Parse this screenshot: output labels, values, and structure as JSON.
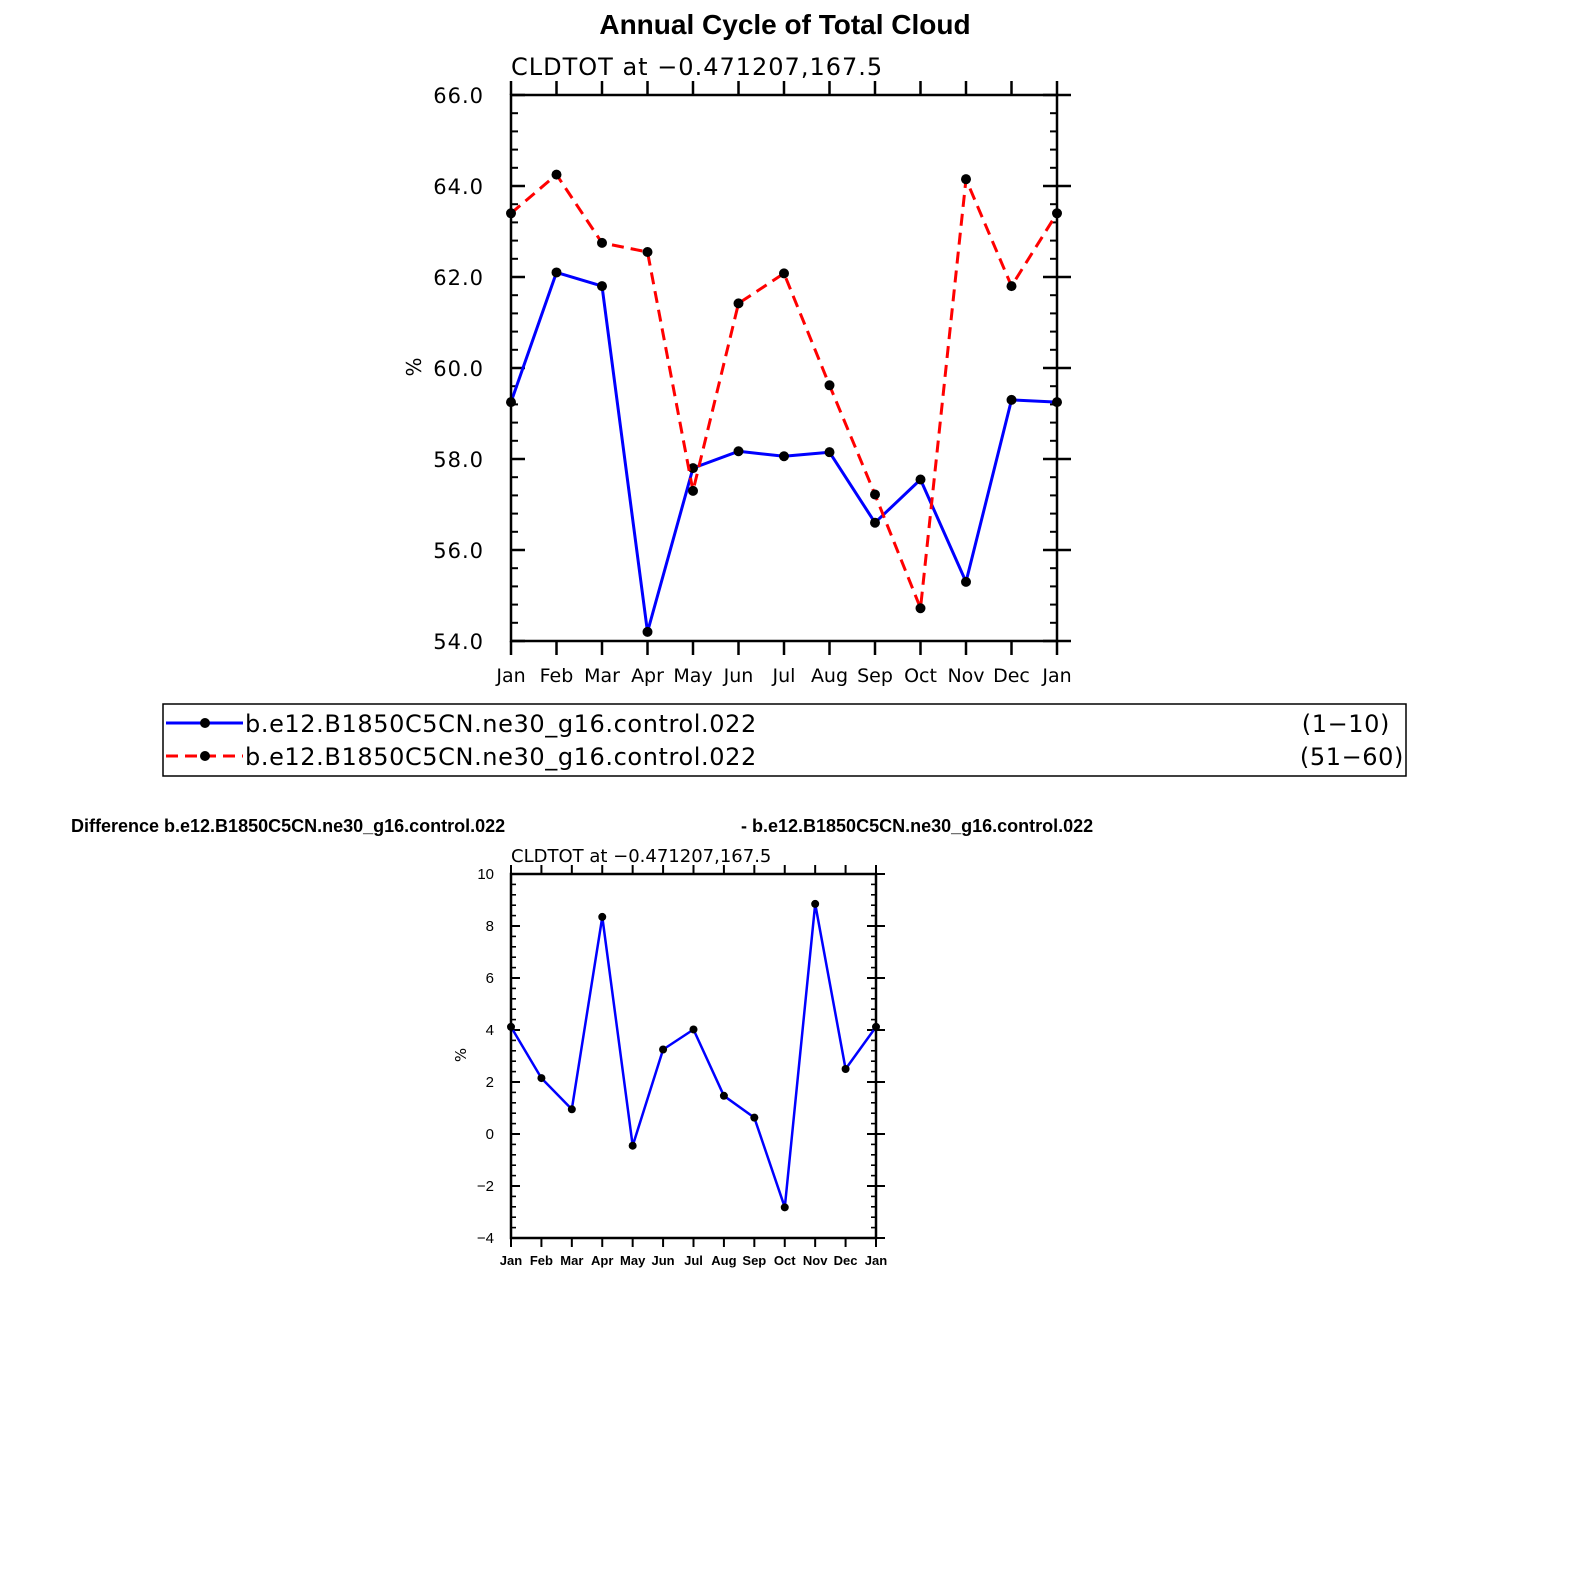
{
  "page_title": "Annual Cycle of Total Cloud",
  "chart_data": [
    {
      "type": "line",
      "subtitle": "CLDTOT at −0.471207,167.5",
      "ylabel": "%",
      "ylim": [
        54,
        66
      ],
      "yticks": [
        "54.0",
        "56.0",
        "58.0",
        "60.0",
        "62.0",
        "64.0",
        "66.0"
      ],
      "categories": [
        "Jan",
        "Feb",
        "Mar",
        "Apr",
        "May",
        "Jun",
        "Jul",
        "Aug",
        "Sep",
        "Oct",
        "Nov",
        "Dec",
        "Jan"
      ],
      "series": [
        {
          "name": "b.e12.B1850C5CN.ne30_g16.control.022",
          "years": "(1−10)",
          "color": "#0000ff",
          "dash": "solid",
          "values": [
            59.25,
            62.1,
            61.8,
            54.2,
            57.8,
            58.17,
            58.06,
            58.15,
            56.6,
            57.55,
            55.3,
            59.3,
            59.25
          ]
        },
        {
          "name": "b.e12.B1850C5CN.ne30_g16.control.022",
          "years": "(51−60)",
          "color": "#ff0000",
          "dash": "dashed",
          "values": [
            63.4,
            64.25,
            62.75,
            62.55,
            57.3,
            61.42,
            62.08,
            59.62,
            57.22,
            54.72,
            64.15,
            61.8,
            63.4
          ]
        }
      ],
      "legend": "below"
    },
    {
      "type": "line",
      "title_left": "Difference b.e12.B1850C5CN.ne30_g16.control.022",
      "title_right": "- b.e12.B1850C5CN.ne30_g16.control.022",
      "subtitle": "CLDTOT at −0.471207,167.5",
      "ylabel": "%",
      "ylim": [
        -4,
        10
      ],
      "yticks": [
        "−4",
        "−2",
        "0",
        "2",
        "4",
        "6",
        "8",
        "10"
      ],
      "categories": [
        "Jan",
        "Feb",
        "Mar",
        "Apr",
        "May",
        "Jun",
        "Jul",
        "Aug",
        "Sep",
        "Oct",
        "Nov",
        "Dec",
        "Jan"
      ],
      "series": [
        {
          "color": "#0000ff",
          "values": [
            4.12,
            2.15,
            0.95,
            8.35,
            -0.45,
            3.25,
            4.02,
            1.47,
            0.63,
            -2.82,
            8.85,
            2.5,
            4.12
          ]
        }
      ]
    }
  ]
}
